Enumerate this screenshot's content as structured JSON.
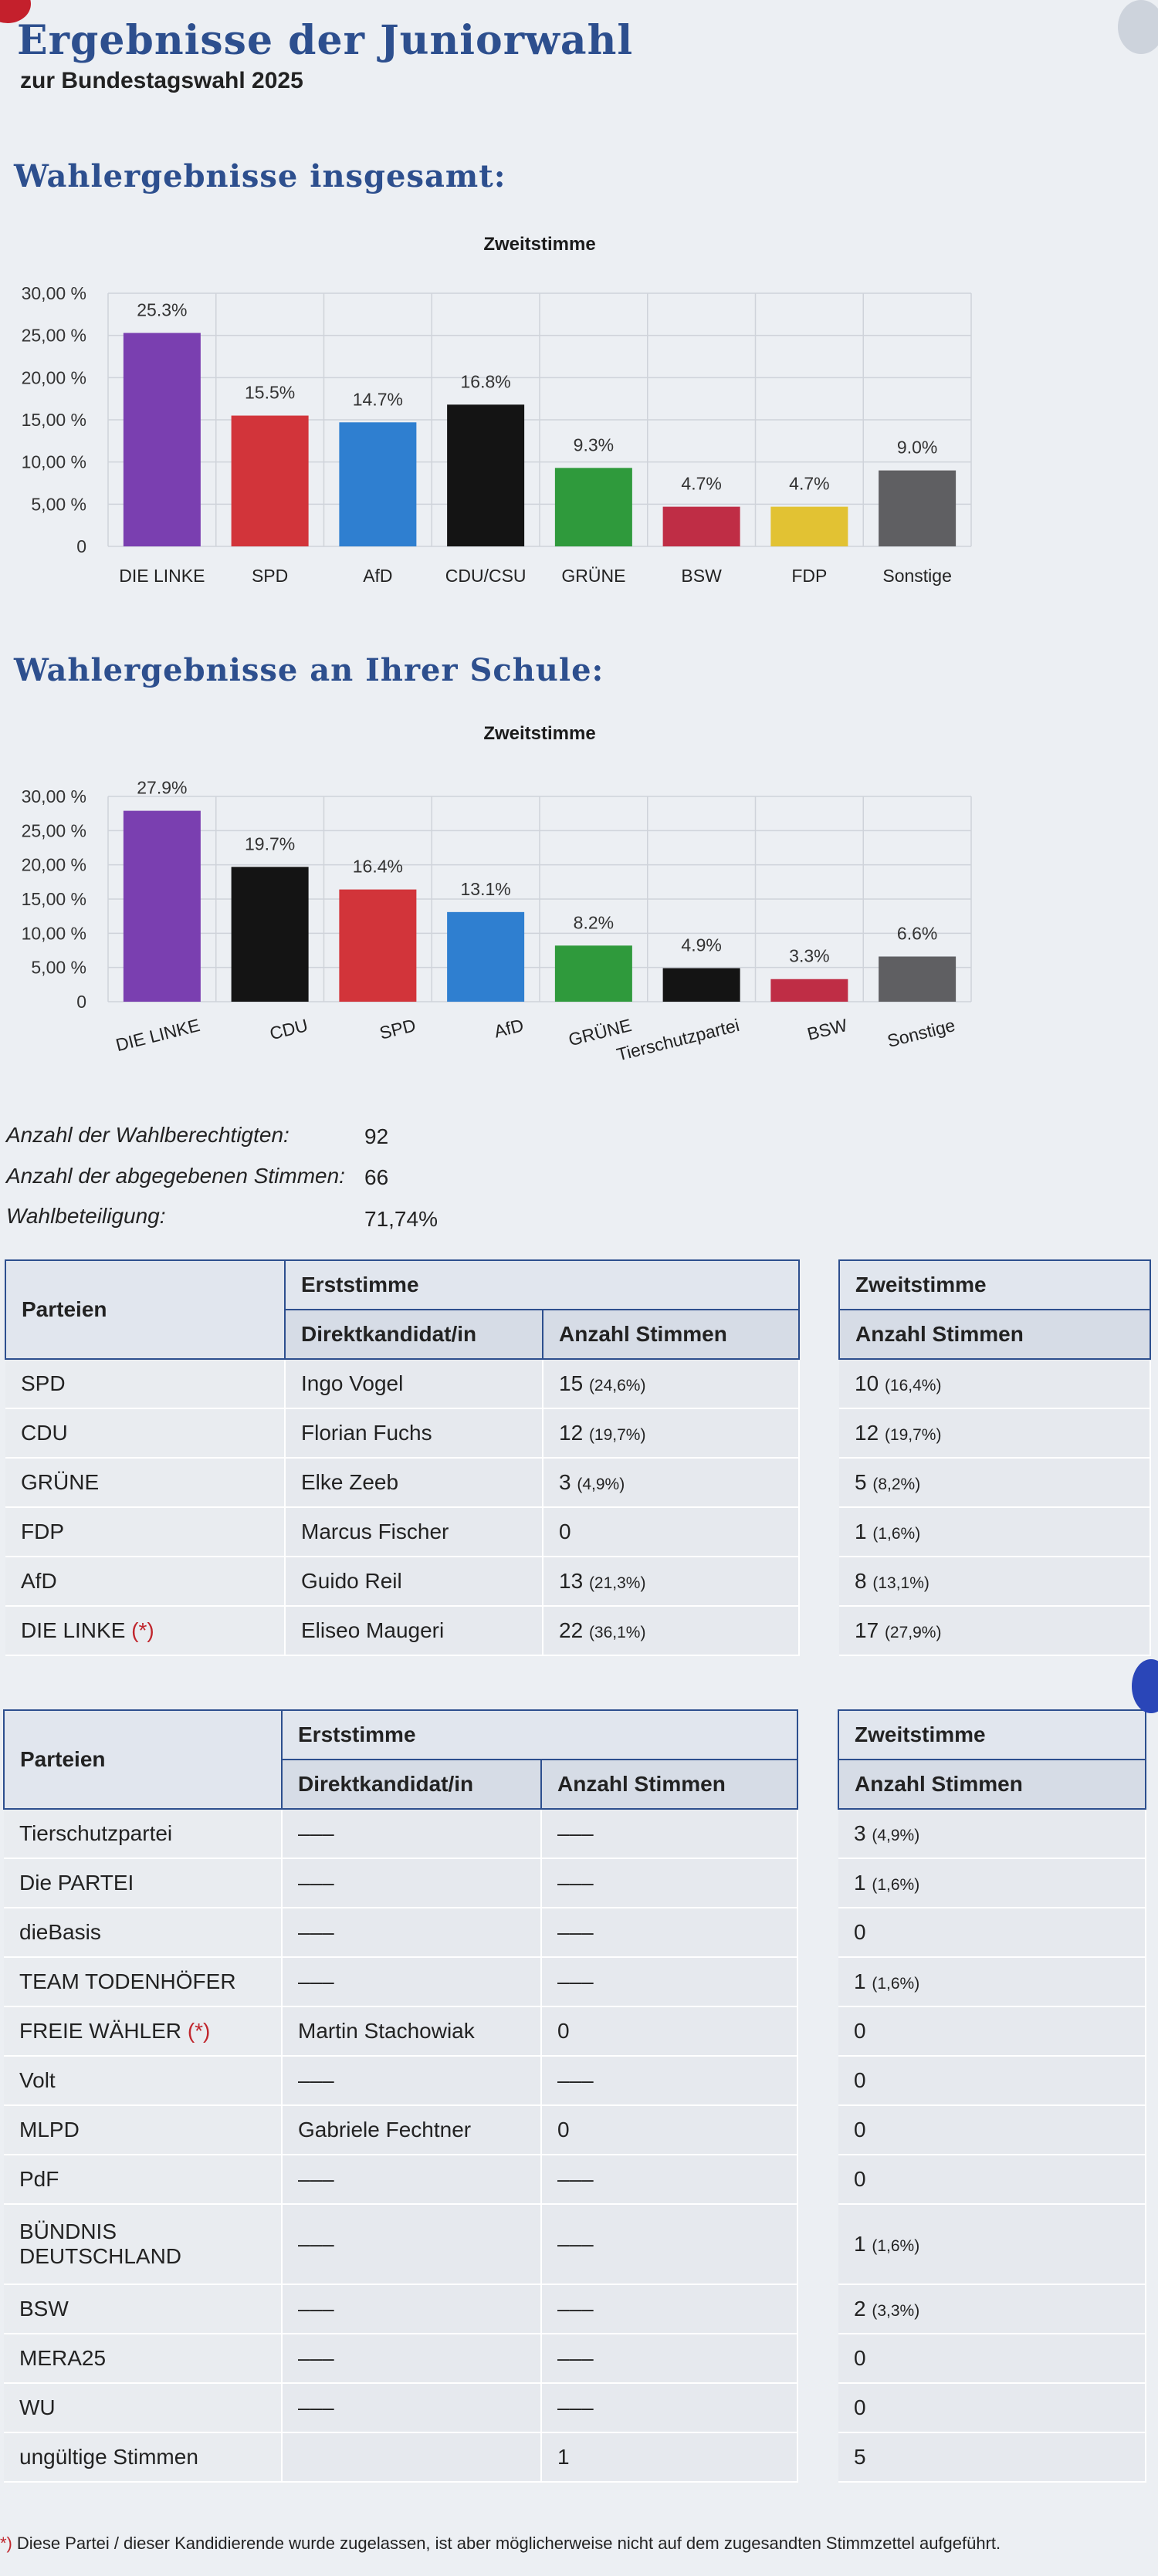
{
  "header": {
    "title": "Ergebnisse der Juniorwahl",
    "subtitle": "zur Bundestagswahl 2025"
  },
  "sections": {
    "overall": "Wahlergebnisse insgesamt:",
    "school": "Wahlergebnisse an Ihrer Schule:"
  },
  "chart_data": [
    {
      "type": "bar",
      "title": "Zweitstimme",
      "categories": [
        "DIE LINKE",
        "SPD",
        "AfD",
        "CDU/CSU",
        "GRÜNE",
        "BSW",
        "FDP",
        "Sonstige"
      ],
      "values": [
        25.3,
        15.5,
        14.7,
        16.8,
        9.3,
        4.7,
        4.7,
        9.0
      ],
      "data_labels": [
        "25.3%",
        "15.5%",
        "14.7%",
        "16.8%",
        "9.3%",
        "4.7%",
        "4.7%",
        "9.0%"
      ],
      "colors": [
        "#7a3fb0",
        "#d2343a",
        "#2f7fd0",
        "#141414",
        "#2f9a3c",
        "#bf2d45",
        "#e2c233",
        "#5f5f62"
      ],
      "y_ticks": [
        "0",
        "5,00 %",
        "10,00 %",
        "15,00 %",
        "20,00 %",
        "25,00 %",
        "30,00 %"
      ],
      "ylim": [
        0,
        30
      ],
      "grid": true,
      "legend": "none"
    },
    {
      "type": "bar",
      "title": "Zweitstimme",
      "categories": [
        "DIE LINKE",
        "CDU",
        "SPD",
        "AfD",
        "GRÜNE",
        "Tierschutzpartei",
        "BSW",
        "Sonstige"
      ],
      "values": [
        27.9,
        19.7,
        16.4,
        13.1,
        8.2,
        4.9,
        3.3,
        6.6
      ],
      "data_labels": [
        "27.9%",
        "19.7%",
        "16.4%",
        "13.1%",
        "8.2%",
        "4.9%",
        "3.3%",
        "6.6%"
      ],
      "colors": [
        "#7a3fb0",
        "#141414",
        "#d2343a",
        "#2f7fd0",
        "#2f9a3c",
        "#141414",
        "#bf2d45",
        "#5f5f62"
      ],
      "y_ticks": [
        "0",
        "5,00 %",
        "10,00 %",
        "15,00 %",
        "20,00 %",
        "25,00 %",
        "30,00 %"
      ],
      "ylim": [
        0,
        30
      ],
      "grid": true,
      "legend": "none"
    }
  ],
  "stats": {
    "eligible_label": "Anzahl der Wahlberechtigten:",
    "eligible_value": "92",
    "votes_label": "Anzahl der abgegebenen Stimmen:",
    "votes_value": "66",
    "turnout_label": "Wahlbeteiligung:",
    "turnout_value": "71,74%"
  },
  "table_headers": {
    "party": "Parteien",
    "first_vote": "Erststimme",
    "candidate": "Direktkandidat/in",
    "count": "Anzahl Stimmen",
    "second_vote": "Zweitstimme",
    "second_count": "Anzahl Stimmen"
  },
  "table1": [
    {
      "party": "SPD",
      "star": "",
      "candidate": "Ingo Vogel",
      "first": "15",
      "first_pct": "(24,6%)",
      "second": "10",
      "second_pct": "(16,4%)"
    },
    {
      "party": "CDU",
      "star": "",
      "candidate": "Florian Fuchs",
      "first": "12",
      "first_pct": "(19,7%)",
      "second": "12",
      "second_pct": "(19,7%)"
    },
    {
      "party": "GRÜNE",
      "star": "",
      "candidate": "Elke Zeeb",
      "first": "3",
      "first_pct": "(4,9%)",
      "second": "5",
      "second_pct": "(8,2%)"
    },
    {
      "party": "FDP",
      "star": "",
      "candidate": "Marcus Fischer",
      "first": "0",
      "first_pct": "",
      "second": "1",
      "second_pct": "(1,6%)"
    },
    {
      "party": "AfD",
      "star": "",
      "candidate": "Guido Reil",
      "first": "13",
      "first_pct": "(21,3%)",
      "second": "8",
      "second_pct": "(13,1%)"
    },
    {
      "party": "DIE LINKE",
      "star": "(*)",
      "candidate": "Eliseo Maugeri",
      "first": "22",
      "first_pct": "(36,1%)",
      "second": "17",
      "second_pct": "(27,9%)"
    }
  ],
  "table2": [
    {
      "party": "Tierschutzpartei",
      "star": "",
      "candidate": "–––",
      "first": "–––",
      "first_pct": "",
      "second": "3",
      "second_pct": "(4,9%)"
    },
    {
      "party": "Die PARTEI",
      "star": "",
      "candidate": "–––",
      "first": "–––",
      "first_pct": "",
      "second": "1",
      "second_pct": "(1,6%)"
    },
    {
      "party": "dieBasis",
      "star": "",
      "candidate": "–––",
      "first": "–––",
      "first_pct": "",
      "second": "0",
      "second_pct": ""
    },
    {
      "party": "TEAM TODENHÖFER",
      "star": "",
      "candidate": "–––",
      "first": "–––",
      "first_pct": "",
      "second": "1",
      "second_pct": "(1,6%)"
    },
    {
      "party": "FREIE WÄHLER",
      "star": "(*)",
      "candidate": "Martin Stachowiak",
      "first": "0",
      "first_pct": "",
      "second": "0",
      "second_pct": ""
    },
    {
      "party": "Volt",
      "star": "",
      "candidate": "–––",
      "first": "–––",
      "first_pct": "",
      "second": "0",
      "second_pct": ""
    },
    {
      "party": "MLPD",
      "star": "",
      "candidate": "Gabriele Fechtner",
      "first": "0",
      "first_pct": "",
      "second": "0",
      "second_pct": ""
    },
    {
      "party": "PdF",
      "star": "",
      "candidate": "–––",
      "first": "–––",
      "first_pct": "",
      "second": "0",
      "second_pct": ""
    },
    {
      "party": "BÜNDNIS DEUTSCHLAND",
      "star": "",
      "candidate": "–––",
      "first": "–––",
      "first_pct": "",
      "second": "1",
      "second_pct": "(1,6%)"
    },
    {
      "party": "BSW",
      "star": "",
      "candidate": "–––",
      "first": "–––",
      "first_pct": "",
      "second": "2",
      "second_pct": "(3,3%)"
    },
    {
      "party": "MERA25",
      "star": "",
      "candidate": "–––",
      "first": "–––",
      "first_pct": "",
      "second": "0",
      "second_pct": ""
    },
    {
      "party": "WU",
      "star": "",
      "candidate": "–––",
      "first": "–––",
      "first_pct": "",
      "second": "0",
      "second_pct": ""
    },
    {
      "party": "ungültige Stimmen",
      "star": "",
      "candidate": "",
      "first": "1",
      "first_pct": "",
      "second": "5",
      "second_pct": ""
    }
  ],
  "footnote": {
    "star": "*)",
    "text": "Diese Partei / dieser Kandidierende wurde zugelassen, ist aber möglicherweise nicht auf dem zugesandten Stimmzettel aufgeführt."
  }
}
